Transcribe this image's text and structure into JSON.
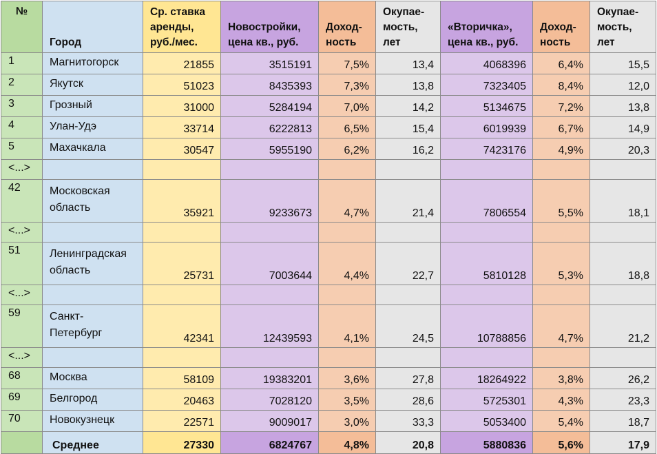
{
  "headers": {
    "num": "№",
    "city": "Город",
    "rent": "Ср. ставка аренды, руб./мес.",
    "new_price": "Новостройки, цена кв., руб.",
    "new_yield": "Доход-ность",
    "new_payback": "Окупае-мость, лет",
    "sec_price": "«Вторичка», цена кв., руб.",
    "sec_yield": "Доход-ность",
    "sec_payback": "Окупае-мость, лет"
  },
  "rows": [
    {
      "num": "1",
      "city": "Магнитогорск",
      "rent": "21855",
      "new_price": "3515191",
      "new_yield": "7,5%",
      "new_payback": "13,4",
      "sec_price": "4068396",
      "sec_yield": "6,4%",
      "sec_payback": "15,5"
    },
    {
      "num": "2",
      "city": "Якутск",
      "rent": "51023",
      "new_price": "8435393",
      "new_yield": "7,3%",
      "new_payback": "13,8",
      "sec_price": "7323405",
      "sec_yield": "8,4%",
      "sec_payback": "12,0"
    },
    {
      "num": "3",
      "city": "Грозный",
      "rent": "31000",
      "new_price": "5284194",
      "new_yield": "7,0%",
      "new_payback": "14,2",
      "sec_price": "5134675",
      "sec_yield": "7,2%",
      "sec_payback": "13,8"
    },
    {
      "num": "4",
      "city": "Улан-Удэ",
      "rent": "33714",
      "new_price": "6222813",
      "new_yield": "6,5%",
      "new_payback": "15,4",
      "sec_price": "6019939",
      "sec_yield": "6,7%",
      "sec_payback": "14,9"
    },
    {
      "num": "5",
      "city": "Махачкала",
      "rent": "30547",
      "new_price": "5955190",
      "new_yield": "6,2%",
      "new_payback": "16,2",
      "sec_price": "7423176",
      "sec_yield": "4,9%",
      "sec_payback": "20,3"
    },
    {
      "gap": true,
      "num": "<...>"
    },
    {
      "num": "42",
      "city": "Московская область",
      "rent": "35921",
      "new_price": "9233673",
      "new_yield": "4,7%",
      "new_payback": "21,4",
      "sec_price": "7806554",
      "sec_yield": "5,5%",
      "sec_payback": "18,1"
    },
    {
      "gap": true,
      "num": "<...>"
    },
    {
      "num": "51",
      "city": "Ленинградская область",
      "rent": "25731",
      "new_price": "7003644",
      "new_yield": "4,4%",
      "new_payback": "22,7",
      "sec_price": "5810128",
      "sec_yield": "5,3%",
      "sec_payback": "18,8"
    },
    {
      "gap": true,
      "num": "<...>"
    },
    {
      "num": "59",
      "city": "Санкт-Петербург",
      "rent": "42341",
      "new_price": "12439593",
      "new_yield": "4,1%",
      "new_payback": "24,5",
      "sec_price": "10788856",
      "sec_yield": "4,7%",
      "sec_payback": "21,2"
    },
    {
      "gap": true,
      "num": "<...>"
    },
    {
      "num": "68",
      "city": "Москва",
      "rent": "58109",
      "new_price": "19383201",
      "new_yield": "3,6%",
      "new_payback": "27,8",
      "sec_price": "18264922",
      "sec_yield": "3,8%",
      "sec_payback": "26,2"
    },
    {
      "num": "69",
      "city": "Белгород",
      "rent": "20463",
      "new_price": "7028120",
      "new_yield": "3,5%",
      "new_payback": "28,6",
      "sec_price": "5725301",
      "sec_yield": "4,3%",
      "sec_payback": "23,3"
    },
    {
      "num": "70",
      "city": "Новокузнецк",
      "rent": "22571",
      "new_price": "9009017",
      "new_yield": "3,0%",
      "new_payback": "33,3",
      "sec_price": "5053400",
      "sec_yield": "5,4%",
      "sec_payback": "18,7"
    }
  ],
  "footer": {
    "label": "Среднее",
    "rent": "27330",
    "new_price": "6824767",
    "new_yield": "4,8%",
    "new_payback": "20,8",
    "sec_price": "5880836",
    "sec_yield": "5,6%",
    "sec_payback": "17,9"
  },
  "colors": {
    "num_col": "#c9e5b8",
    "city_col": "#cfe1f1",
    "rent_col": "#ffebae",
    "price_col": "#dcc7ea",
    "yield_col": "#f6cdb1",
    "payback_col": "#e6e6e6"
  }
}
